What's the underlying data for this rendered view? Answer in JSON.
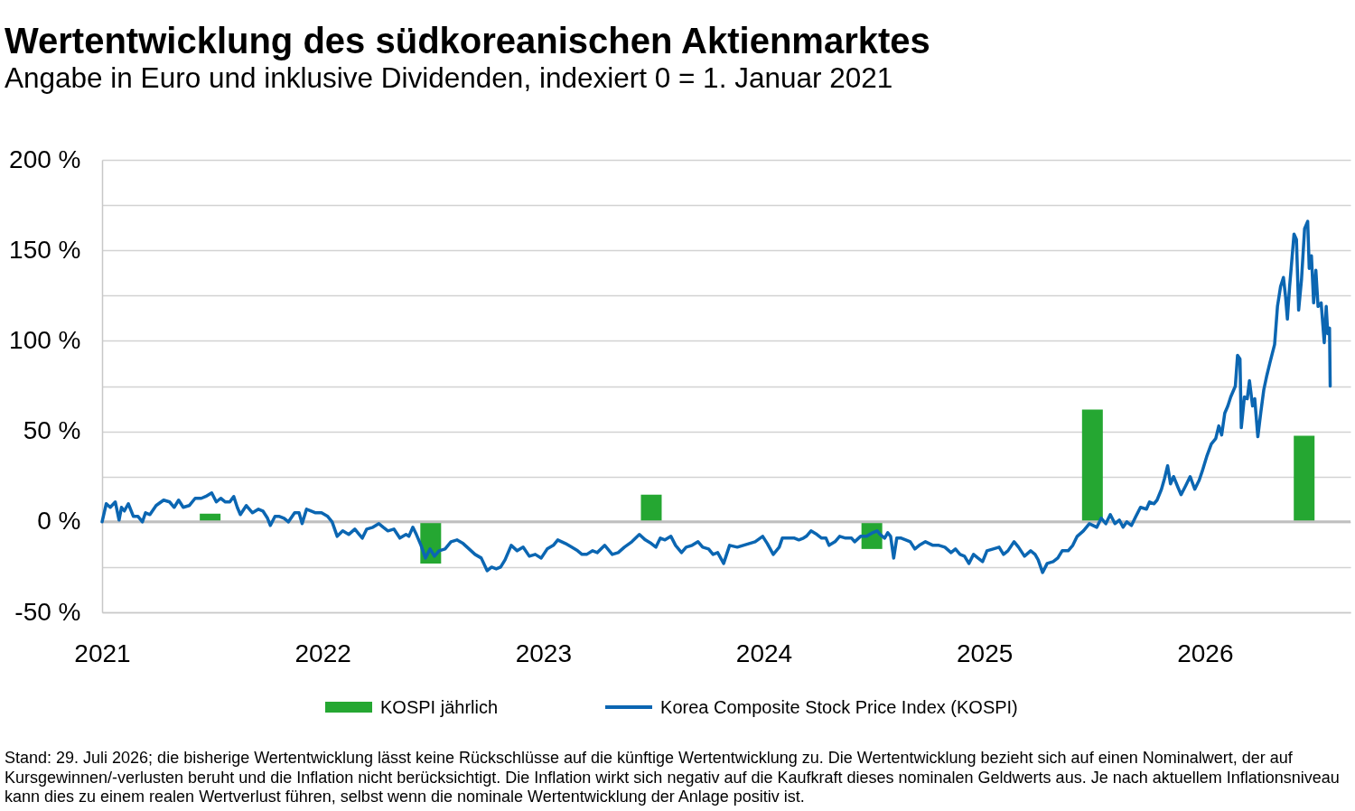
{
  "chart_data": {
    "type": "line",
    "title": "Wertentwicklung des südkoreanischen Aktienmarktes",
    "subtitle": "Angabe in Euro und inklusive Dividenden, indexiert 0 = 1. Januar 2021",
    "annotations": [
      "Stand: 29. Juli 2026; die bisherige Wertentwicklung lässt keine Rückschlüsse auf die künftige Wertentwicklung zu. Die Wertentwicklung bezieht sich auf einen Nominalwert, der auf Kursgewinnen/-verlusten beruht und die Inflation nicht berücksichtigt. Die Inflation wirkt sich negativ auf die Kaufkraft dieses nominalen Geldwerts aus. Je nach aktuellem Inflationsniveau kann dies zu einem realen Wertverlust führen, selbst wenn die nominale Wertentwicklung der Anlage positiv ist."
    ],
    "xlim": [
      2021,
      2026.66
    ],
    "xticks": [
      2021,
      2022,
      2023,
      2024,
      2025,
      2026
    ],
    "ylim": [
      -50,
      200
    ],
    "yticks": [
      {
        "value": -50,
        "label": "-50 %"
      },
      {
        "value": -25,
        "label": null
      },
      {
        "value": 0,
        "label": "0 %"
      },
      {
        "value": 25,
        "label": null
      },
      {
        "value": 50,
        "label": "50 %"
      },
      {
        "value": 75,
        "label": null
      },
      {
        "value": 100,
        "label": "100 %"
      },
      {
        "value": 125,
        "label": null
      },
      {
        "value": 150,
        "label": "150 %"
      },
      {
        "value": 175,
        "label": null
      },
      {
        "value": 200,
        "label": "200 %"
      }
    ],
    "grid": "y",
    "legend": "bottom",
    "ref_lines": [
      {
        "axis": "y",
        "value": 0,
        "color": "#bfbfbf"
      }
    ],
    "series": [
      {
        "name": "KOSPI jährlich",
        "type": "bar",
        "color": "#25a732",
        "x": [
          2021.49,
          2022.49,
          2023.49,
          2024.49,
          2025.49,
          2026.45
        ],
        "values": [
          4.5,
          -23,
          15,
          -15,
          62,
          47.5
        ]
      },
      {
        "name": "Korea Composite Stock Price Index (KOSPI)",
        "color": "#0b66b2",
        "x": [
          2021.0,
          2021.019,
          2021.037,
          2021.06,
          2021.077,
          2021.088,
          2021.101,
          2021.119,
          2021.142,
          2021.163,
          2021.183,
          2021.197,
          2021.217,
          2021.245,
          2021.279,
          2021.306,
          2021.327,
          2021.347,
          2021.368,
          2021.395,
          2021.422,
          2021.45,
          2021.47,
          2021.497,
          2021.518,
          2021.538,
          2021.559,
          2021.579,
          2021.597,
          2021.613,
          2021.627,
          2021.654,
          2021.682,
          2021.709,
          2021.729,
          2021.75,
          2021.763,
          2021.784,
          2021.804,
          2021.825,
          2021.845,
          2021.873,
          2021.893,
          2021.907,
          2021.927,
          2021.948,
          2021.968,
          2021.995,
          2022.023,
          2022.043,
          2022.066,
          2022.091,
          2022.118,
          2022.146,
          2022.166,
          2022.18,
          2022.2,
          2022.228,
          2022.255,
          2022.275,
          2022.296,
          2022.323,
          2022.35,
          2022.378,
          2022.391,
          2022.409,
          2022.425,
          2022.446,
          2022.466,
          2022.487,
          2022.507,
          2022.528,
          2022.555,
          2022.582,
          2022.609,
          2022.637,
          2022.664,
          2022.691,
          2022.719,
          2022.746,
          2022.766,
          2022.787,
          2022.807,
          2022.827,
          2022.855,
          2022.882,
          2022.909,
          2022.937,
          2022.964,
          2022.991,
          2023.018,
          2023.046,
          2023.066,
          2023.101,
          2023.129,
          2023.156,
          2023.176,
          2023.197,
          2023.224,
          2023.245,
          2023.279,
          2023.313,
          2023.34,
          2023.368,
          2023.402,
          2023.436,
          2023.463,
          2023.49,
          2023.511,
          2023.531,
          2023.552,
          2023.579,
          2023.6,
          2023.627,
          2023.648,
          2023.675,
          2023.702,
          2023.723,
          2023.75,
          2023.77,
          2023.791,
          2023.818,
          2023.845,
          2023.88,
          2023.907,
          2023.934,
          2023.961,
          2023.995,
          2024.016,
          2024.043,
          2024.07,
          2024.084,
          2024.111,
          2024.139,
          2024.159,
          2024.18,
          2024.193,
          2024.214,
          2024.241,
          2024.262,
          2024.282,
          2024.296,
          2024.323,
          2024.344,
          2024.371,
          2024.398,
          2024.412,
          2024.439,
          2024.466,
          2024.494,
          2024.514,
          2024.528,
          2024.548,
          2024.562,
          2024.575,
          2024.589,
          2024.603,
          2024.623,
          2024.644,
          2024.664,
          2024.685,
          2024.705,
          2024.733,
          2024.767,
          2024.794,
          2024.821,
          2024.849,
          2024.869,
          2024.89,
          2024.91,
          2024.93,
          2024.951,
          2024.971,
          2024.992,
          2025.012,
          2025.04,
          2025.067,
          2025.087,
          2025.107,
          2025.135,
          2025.155,
          2025.182,
          2025.21,
          2025.23,
          2025.244,
          2025.264,
          2025.285,
          2025.312,
          2025.333,
          2025.353,
          2025.38,
          2025.401,
          2025.421,
          2025.449,
          2025.476,
          2025.51,
          2025.53,
          2025.551,
          2025.571,
          2025.592,
          2025.612,
          2025.629,
          2025.646,
          2025.667,
          2025.687,
          2025.708,
          2025.735,
          2025.749,
          2025.769,
          2025.783,
          2025.803,
          2025.817,
          2025.831,
          2025.844,
          2025.858,
          2025.878,
          2025.892,
          2025.913,
          2025.933,
          2025.954,
          2025.974,
          2025.988,
          2026.008,
          2026.029,
          2026.049,
          2026.063,
          2026.076,
          2026.09,
          2026.104,
          2026.117,
          2026.138,
          2026.148,
          2026.159,
          2026.165,
          2026.179,
          2026.192,
          2026.202,
          2026.216,
          2026.226,
          2026.24,
          2026.254,
          2026.267,
          2026.281,
          2026.295,
          2026.316,
          2026.329,
          2026.343,
          2026.356,
          2026.366,
          2026.374,
          2026.384,
          2026.391,
          2026.404,
          2026.415,
          2026.425,
          2026.438,
          2026.452,
          2026.466,
          2026.473,
          2026.483,
          2026.493,
          2026.503,
          2026.513,
          2026.527,
          2026.541,
          2026.55,
          2026.557,
          2026.565,
          2026.568
        ],
        "values": [
          0,
          10,
          8,
          11,
          1,
          8,
          6,
          10,
          3,
          3,
          0,
          5,
          4,
          9,
          12,
          11,
          8,
          12,
          8,
          9,
          13,
          13,
          14,
          16,
          11,
          13,
          11,
          11,
          14,
          8,
          4,
          9,
          5,
          7,
          6,
          2,
          -2,
          3,
          3,
          2,
          0,
          5,
          5,
          -1,
          7,
          6,
          5,
          5,
          3,
          0,
          -8,
          -5,
          -7,
          -4,
          -7,
          -9,
          -4,
          -3,
          -1,
          -3,
          -5,
          -4,
          -9,
          -7,
          -8,
          -3,
          -7,
          -13,
          -20,
          -15,
          -19,
          -16,
          -15,
          -11,
          -10,
          -12,
          -15,
          -18,
          -20,
          -27,
          -25,
          -26,
          -25,
          -21,
          -13,
          -16,
          -14,
          -19,
          -18,
          -20,
          -15,
          -13,
          -10,
          -12,
          -14,
          -16,
          -18,
          -18,
          -16,
          -17,
          -13,
          -18,
          -17,
          -14,
          -11,
          -7,
          -10,
          -12,
          -14,
          -9,
          -10,
          -8,
          -13,
          -17,
          -14,
          -13,
          -11,
          -14,
          -15,
          -18,
          -17,
          -23,
          -13,
          -14,
          -13,
          -12,
          -11,
          -8,
          -12,
          -18,
          -14,
          -9,
          -9,
          -9,
          -10,
          -9,
          -8,
          -5,
          -7,
          -9,
          -9,
          -13,
          -11,
          -8,
          -9,
          -9,
          -11,
          -8,
          -8,
          -6,
          -5,
          -7,
          -9,
          -6,
          -8,
          -20,
          -9,
          -9,
          -10,
          -11,
          -15,
          -13,
          -11,
          -13,
          -13,
          -14,
          -17,
          -15,
          -18,
          -19,
          -23,
          -18,
          -20,
          -22,
          -16,
          -15,
          -14,
          -18,
          -16,
          -11,
          -14,
          -19,
          -16,
          -18,
          -21,
          -28,
          -23,
          -22,
          -20,
          -16,
          -16,
          -13,
          -8,
          -5,
          -1,
          -3,
          2,
          -1,
          4,
          -1,
          1,
          -3,
          0,
          -2,
          3,
          8,
          7,
          11,
          10,
          12,
          18,
          24,
          31,
          21,
          25,
          19,
          15,
          20,
          25,
          18,
          23,
          28,
          36,
          43,
          46,
          53,
          48,
          60,
          64,
          69,
          75,
          92,
          90,
          52,
          69,
          68,
          78,
          64,
          68,
          47,
          61,
          73,
          81,
          88,
          98,
          119,
          130,
          135,
          124,
          112,
          130,
          140,
          159,
          156,
          117,
          134,
          162,
          166,
          140,
          147,
          121,
          139,
          119,
          121,
          99,
          119,
          104,
          107,
          75
        ]
      }
    ]
  }
}
